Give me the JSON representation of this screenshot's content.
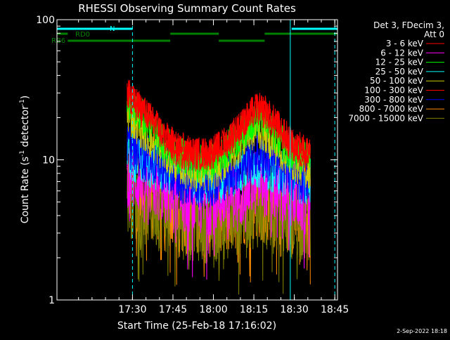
{
  "chart_data": {
    "type": "line",
    "title": "RHESSI Observing Summary Count Rates",
    "xlabel": "Start Time (25-Feb-18 17:16:02)",
    "ylabel_main": "Count Rate (s",
    "ylabel_sup": "-1",
    "ylabel_mid": " detector",
    "ylabel_sup2": "-1",
    "ylabel_end": ")",
    "y_scale": "log",
    "ylim": [
      1,
      100
    ],
    "x_range_minutes": [
      -14.0,
      90.0
    ],
    "x_ticks": [
      {
        "label": "17:30",
        "minute": 14.0
      },
      {
        "label": "17:45",
        "minute": 29.0
      },
      {
        "label": "18:00",
        "minute": 44.0
      },
      {
        "label": "18:15",
        "minute": 59.0
      },
      {
        "label": "18:30",
        "minute": 74.0
      },
      {
        "label": "18:45",
        "minute": 89.0
      }
    ],
    "y_ticks": [
      {
        "label": "1",
        "value": 1
      },
      {
        "label": "10",
        "value": 10
      },
      {
        "label": "100",
        "value": 100
      }
    ],
    "legend_placement": "top-right",
    "legend_header": [
      "Det 3, FDecim 3,",
      "Att 0"
    ],
    "series": [
      {
        "name": "3 - 6 keV",
        "color": "#ff0000",
        "profile": [
          [
            12,
            30
          ],
          [
            14,
            26
          ],
          [
            18,
            22
          ],
          [
            22,
            18
          ],
          [
            26,
            14
          ],
          [
            30,
            12
          ],
          [
            34,
            11
          ],
          [
            38,
            11
          ],
          [
            42,
            11
          ],
          [
            46,
            12
          ],
          [
            50,
            14
          ],
          [
            54,
            17
          ],
          [
            57,
            20
          ],
          [
            60,
            23
          ],
          [
            63,
            22
          ],
          [
            66,
            19
          ],
          [
            70,
            15
          ],
          [
            74,
            12
          ],
          [
            78,
            11
          ],
          [
            80,
            11
          ]
        ],
        "noise": 0.18
      },
      {
        "name": "6 - 12 keV",
        "color": "#ff00ff",
        "profile": [
          [
            12,
            8
          ],
          [
            14,
            7.5
          ],
          [
            18,
            7
          ],
          [
            22,
            6.5
          ],
          [
            26,
            6
          ],
          [
            30,
            5.5
          ],
          [
            34,
            5.2
          ],
          [
            38,
            5
          ],
          [
            42,
            5
          ],
          [
            46,
            5.2
          ],
          [
            50,
            5.5
          ],
          [
            54,
            6
          ],
          [
            57,
            6.5
          ],
          [
            60,
            7
          ],
          [
            63,
            6.8
          ],
          [
            66,
            6.4
          ],
          [
            70,
            6
          ],
          [
            74,
            5.5
          ],
          [
            78,
            5
          ],
          [
            80,
            5
          ]
        ],
        "noise": 0.35
      },
      {
        "name": "12 - 25 keV",
        "color": "#00ff00",
        "profile": [
          [
            12,
            28
          ],
          [
            14,
            24
          ],
          [
            18,
            20
          ],
          [
            22,
            16
          ],
          [
            26,
            13
          ],
          [
            30,
            11
          ],
          [
            34,
            10
          ],
          [
            38,
            9.5
          ],
          [
            42,
            9.5
          ],
          [
            46,
            10.5
          ],
          [
            50,
            12.5
          ],
          [
            54,
            15
          ],
          [
            57,
            18
          ],
          [
            60,
            20
          ],
          [
            63,
            19
          ],
          [
            66,
            16
          ],
          [
            70,
            13
          ],
          [
            74,
            11
          ],
          [
            78,
            10
          ],
          [
            80,
            10
          ]
        ],
        "noise": 0.2
      },
      {
        "name": "25 - 50 keV",
        "color": "#00ffff",
        "profile": [
          [
            12,
            11
          ],
          [
            14,
            10
          ],
          [
            18,
            9.5
          ],
          [
            22,
            9
          ],
          [
            26,
            8.5
          ],
          [
            30,
            8
          ],
          [
            34,
            7.5
          ],
          [
            38,
            7.2
          ],
          [
            42,
            7
          ],
          [
            46,
            7.2
          ],
          [
            50,
            7.8
          ],
          [
            54,
            8.5
          ],
          [
            57,
            9.2
          ],
          [
            60,
            9.5
          ],
          [
            63,
            9.2
          ],
          [
            66,
            8.6
          ],
          [
            70,
            8
          ],
          [
            74,
            7.5
          ],
          [
            78,
            7
          ],
          [
            80,
            7
          ]
        ],
        "noise": 0.25
      },
      {
        "name": "50 - 100 keV",
        "color": "#cccc00",
        "profile": [
          [
            12,
            22
          ],
          [
            14,
            19
          ],
          [
            18,
            16
          ],
          [
            22,
            13
          ],
          [
            26,
            11
          ],
          [
            30,
            9.5
          ],
          [
            34,
            8.5
          ],
          [
            38,
            8
          ],
          [
            42,
            8
          ],
          [
            46,
            8.8
          ],
          [
            50,
            10.5
          ],
          [
            54,
            13
          ],
          [
            57,
            15
          ],
          [
            60,
            16.5
          ],
          [
            63,
            15.5
          ],
          [
            66,
            13
          ],
          [
            70,
            11
          ],
          [
            74,
            9.5
          ],
          [
            78,
            8.5
          ],
          [
            80,
            8.5
          ]
        ],
        "noise": 0.2
      },
      {
        "name": "100 - 300 keV",
        "color": "#ff0000",
        "profile": [
          [
            12,
            30
          ],
          [
            14,
            27
          ],
          [
            18,
            23
          ],
          [
            22,
            19
          ],
          [
            26,
            15
          ],
          [
            30,
            13
          ],
          [
            34,
            12
          ],
          [
            38,
            11.5
          ],
          [
            42,
            11.5
          ],
          [
            46,
            12.5
          ],
          [
            50,
            15
          ],
          [
            54,
            18
          ],
          [
            57,
            21
          ],
          [
            60,
            24
          ],
          [
            63,
            23
          ],
          [
            66,
            20
          ],
          [
            70,
            16
          ],
          [
            74,
            13
          ],
          [
            78,
            12
          ],
          [
            80,
            12
          ]
        ],
        "noise": 0.15
      },
      {
        "name": "300 - 800 keV",
        "color": "#0000ff",
        "profile": [
          [
            12,
            13
          ],
          [
            14,
            12
          ],
          [
            18,
            10.5
          ],
          [
            22,
            9.5
          ],
          [
            26,
            8.5
          ],
          [
            30,
            7.5
          ],
          [
            34,
            7
          ],
          [
            38,
            6.8
          ],
          [
            42,
            6.8
          ],
          [
            46,
            7.2
          ],
          [
            50,
            8
          ],
          [
            54,
            9
          ],
          [
            57,
            10
          ],
          [
            60,
            11
          ],
          [
            63,
            10.5
          ],
          [
            66,
            9.5
          ],
          [
            70,
            8.5
          ],
          [
            74,
            7.5
          ],
          [
            78,
            7
          ],
          [
            80,
            7
          ]
        ],
        "noise": 0.25
      },
      {
        "name": "800 - 7000 keV",
        "color": "#ff8c00",
        "profile": [
          [
            12,
            7
          ],
          [
            14,
            6.5
          ],
          [
            18,
            6
          ],
          [
            22,
            5.5
          ],
          [
            26,
            5
          ],
          [
            30,
            4.6
          ],
          [
            34,
            4.3
          ],
          [
            38,
            4.1
          ],
          [
            42,
            4
          ],
          [
            46,
            4.1
          ],
          [
            50,
            4.4
          ],
          [
            54,
            4.8
          ],
          [
            57,
            5.2
          ],
          [
            60,
            5.5
          ],
          [
            63,
            5.3
          ],
          [
            66,
            5
          ],
          [
            70,
            4.6
          ],
          [
            74,
            4.3
          ],
          [
            78,
            4
          ],
          [
            80,
            4
          ]
        ],
        "noise": 0.45
      },
      {
        "name": "7000 - 15000 keV",
        "color": "#808000",
        "profile": [
          [
            12,
            6
          ],
          [
            14,
            5.5
          ],
          [
            18,
            5
          ],
          [
            22,
            4.7
          ],
          [
            26,
            4.4
          ],
          [
            30,
            4.1
          ],
          [
            34,
            3.9
          ],
          [
            38,
            3.8
          ],
          [
            42,
            3.7
          ],
          [
            46,
            3.8
          ],
          [
            50,
            4
          ],
          [
            54,
            4.3
          ],
          [
            57,
            4.6
          ],
          [
            60,
            4.8
          ],
          [
            63,
            4.6
          ],
          [
            66,
            4.4
          ],
          [
            70,
            4.1
          ],
          [
            74,
            3.9
          ],
          [
            78,
            3.7
          ],
          [
            80,
            3.7
          ]
        ],
        "noise": 0.45
      }
    ],
    "observing_flags": {
      "cyan_bar_segments_minutes": [
        [
          -14.0,
          14.0
        ],
        [
          73.0,
          90.0
        ]
      ],
      "cyan_bar_label": "N",
      "rd0_label": "RD0",
      "rd0_segments_minutes": [
        [
          -14.0,
          -10.0
        ],
        [
          28.0,
          46.0
        ],
        [
          63.0,
          90.0
        ]
      ],
      "rb6_label": "RB6",
      "rb6_segments_minutes": [
        [
          -10.0,
          28.0
        ],
        [
          46.0,
          63.0
        ]
      ],
      "solid_vlines_minutes": [
        -14.0,
        72.5
      ],
      "dashed_vlines_minutes": [
        14.0,
        89.0
      ]
    }
  },
  "footer": {
    "timestamp": "2-Sep-2022 18:18"
  },
  "colors": {
    "background": "#000000",
    "axis": "#ffffff",
    "flag_cyan": "#00ffff",
    "flag_green": "#008000"
  }
}
